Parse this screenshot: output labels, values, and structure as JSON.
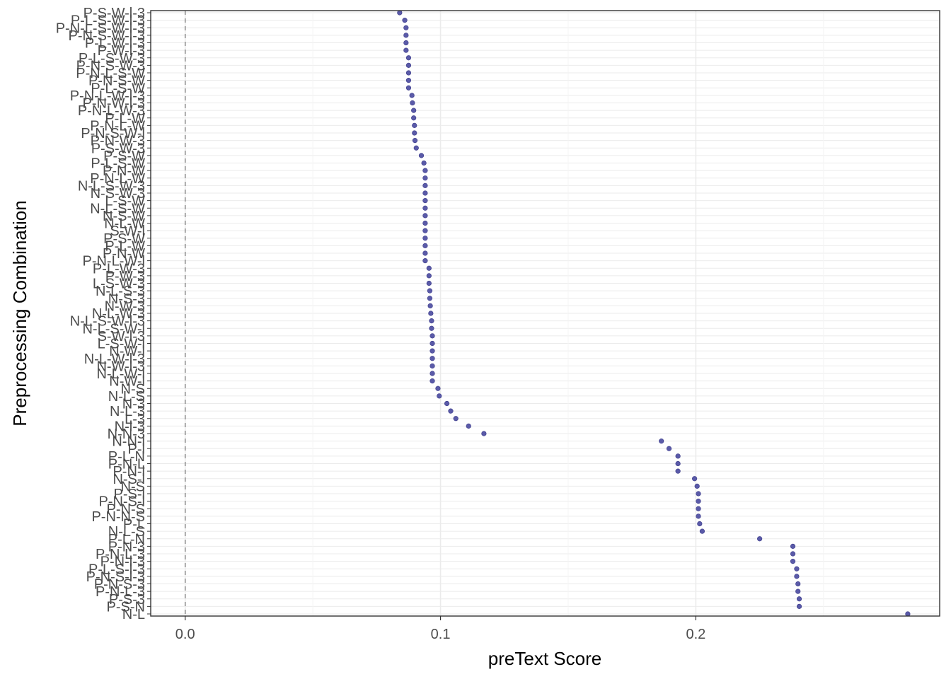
{
  "chart_data": {
    "type": "scatter",
    "title": "",
    "xlabel": "preText Score",
    "ylabel": "Preprocessing Combination",
    "xlim": [
      -0.0135,
      0.2955
    ],
    "xticks": [
      0.0,
      0.1,
      0.2
    ],
    "xtick_labels": [
      "0.0",
      "0.1",
      "0.2"
    ],
    "reference_line_x": 0.0,
    "grid": true,
    "point_color": "#5a5aa8",
    "categories": [
      "P-S-W-l-3",
      "P-L-S-W-l-3",
      "P-N-L-S-W-l-3",
      "P-N-S-W-l-3",
      "P-L-W-l-3",
      "P-W-l-3",
      "P-L-S-W-3",
      "P-N-S-W-3",
      "P-N-L-S-W",
      "P-N-S-W",
      "P-L-S-W",
      "P-N-L-W-l-3",
      "P-N-W-l-3",
      "P-N-L-W-3",
      "P-L-W",
      "P-N-L-W",
      "P-N-S-W-l",
      "P-N-W-3",
      "P-S-W-3",
      "P-S-W",
      "P-L-S-W",
      "P-N-W",
      "P-N-L-W",
      "N-L-S-W-3",
      "N-S-W-3",
      "L-S-W",
      "N-L-S-W",
      "N-S-W",
      "N-L-W",
      "S-W-l",
      "P-S-W",
      "P-L-W",
      "P-N-W",
      "P-N-L-W-l",
      "P-L-W-3",
      "P-W-3",
      "L-S-W-3",
      "N-L-S-3",
      "N-S-3",
      "N-W-3",
      "N-L-W-3",
      "N-L-S-W-l-3",
      "N-L-S-W-l",
      "S-W-l-3",
      "L-S-W-l",
      "N-W-l",
      "N-L-W-l-3",
      "N-W-l-3",
      "N-L-W-l",
      "N-W-l",
      "N-S",
      "N-L-S",
      "N-3",
      "N-L-3",
      "L-3",
      "N-l-3",
      "N-N-3",
      "N-N-l",
      "P-l",
      "P-L-N",
      "P-N-L",
      "P-N-l",
      "N-S-l",
      "N-S",
      "P-S-l",
      "P-N-S-l",
      "P-N-S",
      "P-N-N-S",
      "P-L",
      "N-L-S",
      "P-L-N",
      "P-N-3",
      "P-N-L-3",
      "P-N-l-3",
      "P-L-S-l-3",
      "P-N-S-l-3",
      "P-N-S-3",
      "P-N-L-3",
      "P-S-3",
      "P-S-N",
      "N-L"
    ],
    "points": [
      {
        "y": "P-S-W-l-3",
        "x": 0.084
      },
      {
        "y": "P-L-S-W-l-3",
        "x": 0.086
      },
      {
        "y": "P-N-L-S-W-l-3",
        "x": 0.0865
      },
      {
        "y": "P-N-S-W-l-3",
        "x": 0.0865
      },
      {
        "y": "P-L-W-l-3",
        "x": 0.0865
      },
      {
        "y": "P-W-l-3",
        "x": 0.0865
      },
      {
        "y": "P-L-S-W-3",
        "x": 0.0875
      },
      {
        "y": "P-N-S-W-3",
        "x": 0.0875
      },
      {
        "y": "P-N-L-S-W",
        "x": 0.0875
      },
      {
        "y": "P-N-S-W",
        "x": 0.0875
      },
      {
        "y": "P-L-S-W",
        "x": 0.0875
      },
      {
        "y": "P-N-L-W-l-3",
        "x": 0.0888
      },
      {
        "y": "P-N-W-l-3",
        "x": 0.089
      },
      {
        "y": "P-N-L-W-3",
        "x": 0.0895
      },
      {
        "y": "P-L-W",
        "x": 0.0895
      },
      {
        "y": "P-N-L-W",
        "x": 0.0898
      },
      {
        "y": "P-N-S-W-l",
        "x": 0.0898
      },
      {
        "y": "P-N-W-3",
        "x": 0.09
      },
      {
        "y": "P-S-W-3",
        "x": 0.0905
      },
      {
        "y": "P-S-W",
        "x": 0.0925
      },
      {
        "y": "P-L-S-W",
        "x": 0.0935
      },
      {
        "y": "P-N-W",
        "x": 0.094
      },
      {
        "y": "P-N-L-W",
        "x": 0.094
      },
      {
        "y": "N-L-S-W-3",
        "x": 0.094
      },
      {
        "y": "N-S-W-3",
        "x": 0.094
      },
      {
        "y": "L-S-W",
        "x": 0.094
      },
      {
        "y": "N-L-S-W",
        "x": 0.094
      },
      {
        "y": "N-S-W",
        "x": 0.094
      },
      {
        "y": "N-L-W",
        "x": 0.094
      },
      {
        "y": "S-W-l",
        "x": 0.094
      },
      {
        "y": "P-S-W",
        "x": 0.094
      },
      {
        "y": "P-L-W",
        "x": 0.094
      },
      {
        "y": "P-N-W",
        "x": 0.094
      },
      {
        "y": "P-N-L-W-l",
        "x": 0.094
      },
      {
        "y": "P-L-W-3",
        "x": 0.0955
      },
      {
        "y": "P-W-3",
        "x": 0.0955
      },
      {
        "y": "L-S-W-3",
        "x": 0.0955
      },
      {
        "y": "N-L-S-3",
        "x": 0.0958
      },
      {
        "y": "N-S-3",
        "x": 0.0958
      },
      {
        "y": "N-W-3",
        "x": 0.096
      },
      {
        "y": "N-L-W-3",
        "x": 0.0962
      },
      {
        "y": "N-L-S-W-l-3",
        "x": 0.0965
      },
      {
        "y": "N-L-S-W-l",
        "x": 0.0965
      },
      {
        "y": "S-W-l-3",
        "x": 0.0968
      },
      {
        "y": "L-S-W-l",
        "x": 0.0968
      },
      {
        "y": "N-W-l",
        "x": 0.0968
      },
      {
        "y": "N-L-W-l-3",
        "x": 0.0968
      },
      {
        "y": "N-W-l-3",
        "x": 0.0968
      },
      {
        "y": "N-L-W-l",
        "x": 0.0968
      },
      {
        "y": "N-W-l",
        "x": 0.0968
      },
      {
        "y": "N-S",
        "x": 0.099
      },
      {
        "y": "N-L-S",
        "x": 0.0995
      },
      {
        "y": "N-3",
        "x": 0.1025
      },
      {
        "y": "N-L-3",
        "x": 0.104
      },
      {
        "y": "L-3",
        "x": 0.106
      },
      {
        "y": "N-l-3",
        "x": 0.111
      },
      {
        "y": "N-N-3",
        "x": 0.117
      },
      {
        "y": "N-N-l",
        "x": 0.1865
      },
      {
        "y": "P-l",
        "x": 0.1895
      },
      {
        "y": "P-L-N",
        "x": 0.193
      },
      {
        "y": "P-N-L",
        "x": 0.193
      },
      {
        "y": "P-N-l",
        "x": 0.193
      },
      {
        "y": "N-S-l",
        "x": 0.1995
      },
      {
        "y": "N-S",
        "x": 0.2005
      },
      {
        "y": "P-S-l",
        "x": 0.201
      },
      {
        "y": "P-N-S-l",
        "x": 0.201
      },
      {
        "y": "P-N-S",
        "x": 0.201
      },
      {
        "y": "P-N-N-S",
        "x": 0.201
      },
      {
        "y": "P-L",
        "x": 0.2015
      },
      {
        "y": "N-L-S",
        "x": 0.2025
      },
      {
        "y": "P-L-N",
        "x": 0.225
      },
      {
        "y": "P-N-3",
        "x": 0.238
      },
      {
        "y": "P-N-L-3",
        "x": 0.238
      },
      {
        "y": "P-N-l-3",
        "x": 0.238
      },
      {
        "y": "P-L-S-l-3",
        "x": 0.2395
      },
      {
        "y": "P-N-S-l-3",
        "x": 0.2395
      },
      {
        "y": "P-N-S-3",
        "x": 0.24
      },
      {
        "y": "P-N-L-3",
        "x": 0.24
      },
      {
        "y": "P-S-3",
        "x": 0.2405
      },
      {
        "y": "P-S-N",
        "x": 0.2405
      },
      {
        "y": "N-L",
        "x": 0.283
      }
    ]
  }
}
